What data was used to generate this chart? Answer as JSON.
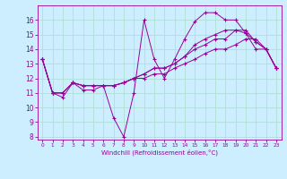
{
  "xlabel": "Windchill (Refroidissement éolien,°C)",
  "background_color": "#cceeff",
  "grid_color": "#aaddcc",
  "line_color": "#990099",
  "xlim": [
    -0.5,
    23.5
  ],
  "ylim": [
    7.8,
    17.0
  ],
  "yticks": [
    8,
    9,
    10,
    11,
    12,
    13,
    14,
    15,
    16
  ],
  "xticks": [
    0,
    1,
    2,
    3,
    4,
    5,
    6,
    7,
    8,
    9,
    10,
    11,
    12,
    13,
    14,
    15,
    16,
    17,
    18,
    19,
    20,
    21,
    22,
    23
  ],
  "line1_x": [
    0,
    1,
    2,
    3,
    4,
    5,
    6,
    7,
    8,
    9,
    10,
    11,
    12,
    13,
    14,
    15,
    16,
    17,
    18,
    19,
    20,
    21,
    22,
    23
  ],
  "line1_y": [
    13.3,
    11.0,
    10.7,
    11.7,
    11.2,
    11.2,
    11.5,
    9.3,
    8.0,
    11.0,
    16.0,
    13.3,
    12.0,
    13.3,
    14.7,
    15.9,
    16.5,
    16.5,
    16.0,
    16.0,
    15.1,
    14.0,
    14.0,
    12.7
  ],
  "line2_x": [
    0,
    1,
    2,
    3,
    4,
    5,
    6,
    7,
    8,
    9,
    10,
    11,
    12,
    13,
    14,
    15,
    16,
    17,
    18,
    19,
    20,
    21,
    22,
    23
  ],
  "line2_y": [
    13.3,
    11.0,
    11.0,
    11.7,
    11.5,
    11.5,
    11.5,
    11.5,
    11.7,
    12.0,
    12.3,
    12.7,
    12.7,
    13.0,
    13.5,
    14.3,
    14.7,
    15.0,
    15.3,
    15.3,
    15.1,
    14.5,
    14.0,
    12.7
  ],
  "line3_x": [
    0,
    1,
    2,
    3,
    4,
    5,
    6,
    7,
    8,
    9,
    10,
    11,
    12,
    13,
    14,
    15,
    16,
    17,
    18,
    19,
    20,
    21,
    22,
    23
  ],
  "line3_y": [
    13.3,
    11.0,
    11.0,
    11.7,
    11.5,
    11.5,
    11.5,
    11.5,
    11.7,
    12.0,
    12.3,
    12.7,
    12.7,
    13.0,
    13.5,
    14.0,
    14.3,
    14.7,
    14.7,
    15.3,
    15.3,
    14.5,
    14.0,
    12.7
  ],
  "line4_x": [
    0,
    1,
    2,
    3,
    4,
    5,
    6,
    7,
    8,
    9,
    10,
    11,
    12,
    13,
    14,
    15,
    16,
    17,
    18,
    19,
    20,
    21,
    22,
    23
  ],
  "line4_y": [
    13.3,
    11.0,
    11.0,
    11.7,
    11.5,
    11.5,
    11.5,
    11.5,
    11.7,
    12.0,
    12.0,
    12.3,
    12.3,
    12.7,
    13.0,
    13.3,
    13.7,
    14.0,
    14.0,
    14.3,
    14.7,
    14.7,
    14.0,
    12.7
  ]
}
